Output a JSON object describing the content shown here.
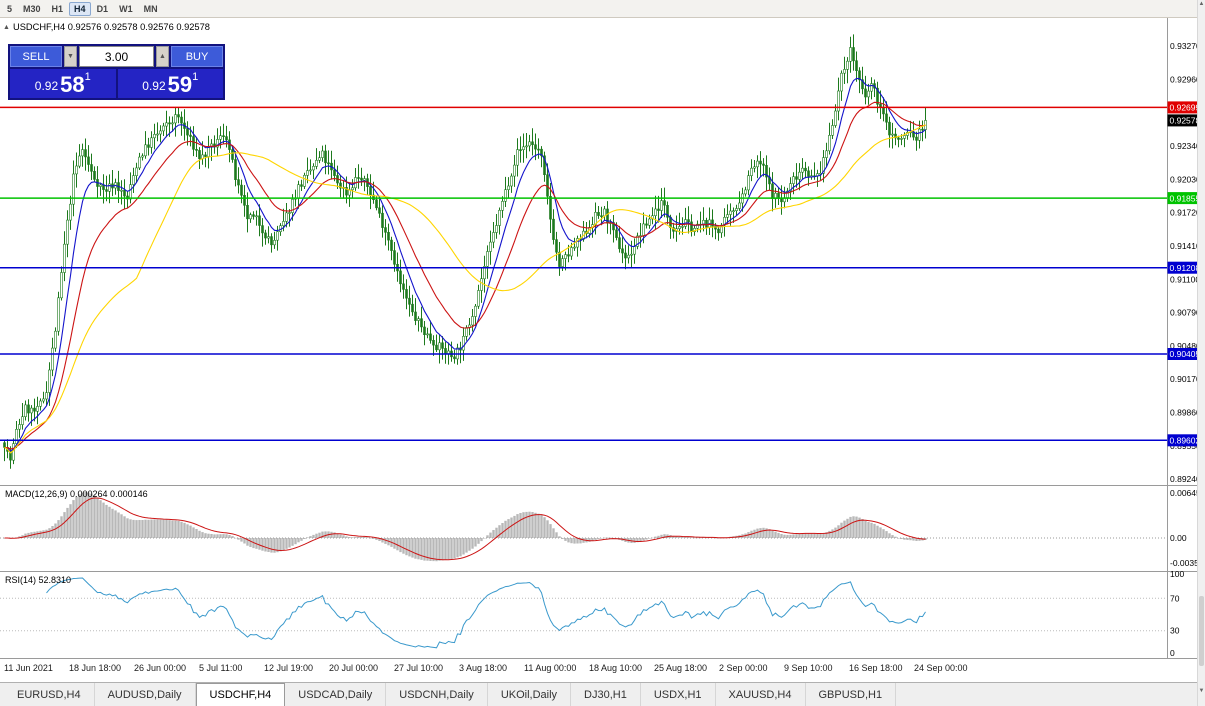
{
  "toolbar": {
    "periods": [
      "5",
      "M30",
      "H1",
      "H4",
      "D1",
      "W1",
      "MN"
    ],
    "active_period": "H4"
  },
  "symbol_info": {
    "marker": "▲",
    "line": "USDCHF,H4 0.92576 0.92578 0.92576 0.92578"
  },
  "trade_widget": {
    "sell_label": "SELL",
    "buy_label": "BUY",
    "volume": "3.00",
    "spin_down": "▼",
    "spin_up": "▲",
    "bid": {
      "small": "0.92",
      "big": "58",
      "sup": "1"
    },
    "ask": {
      "small": "0.92",
      "big": "59",
      "sup": "1"
    }
  },
  "chart_data": {
    "type": "candlestick",
    "symbol": "USDCHF",
    "timeframe": "H4",
    "ohlc": {
      "open": "0.92576",
      "high": "0.92578",
      "low": "0.92576",
      "close": "0.92578"
    },
    "current_price": 0.92578,
    "current_label": "0.92578",
    "y_axis": {
      "top_price": 0.93531,
      "bottom_price": 0.89186
    },
    "price_ticks": [
      "0.93270",
      "0.92960",
      "0.92340",
      "0.92030",
      "0.91720",
      "0.91410",
      "0.91100",
      "0.90790",
      "0.90480",
      "0.90170",
      "0.89860",
      "0.89550",
      "0.89240"
    ],
    "levels": [
      {
        "price": 0.92699,
        "label": "0.92699",
        "color": "#E00000",
        "kind": "resistance"
      },
      {
        "price": 0.91855,
        "label": "0.91855",
        "color": "#00C300",
        "kind": "support"
      },
      {
        "price": 0.91208,
        "label": "0.91208",
        "color": "#0000D0",
        "kind": "support"
      },
      {
        "price": 0.90405,
        "label": "0.90405",
        "color": "#0000D0",
        "kind": "support"
      },
      {
        "price": 0.89602,
        "label": "0.89602",
        "color": "#0000D0",
        "kind": "support"
      }
    ],
    "bars": {
      "count": 308,
      "spacing": 3,
      "seed": 7,
      "noise": 0.0009,
      "wick": 0.0011
    },
    "price_path": [
      [
        0.0,
        0.8958
      ],
      [
        0.006,
        0.894
      ],
      [
        0.013,
        0.8968
      ],
      [
        0.022,
        0.899
      ],
      [
        0.035,
        0.8986
      ],
      [
        0.045,
        0.9005
      ],
      [
        0.055,
        0.906
      ],
      [
        0.065,
        0.914
      ],
      [
        0.075,
        0.9205
      ],
      [
        0.084,
        0.9232
      ],
      [
        0.095,
        0.9208
      ],
      [
        0.108,
        0.9192
      ],
      [
        0.12,
        0.92
      ],
      [
        0.133,
        0.9183
      ],
      [
        0.145,
        0.9222
      ],
      [
        0.16,
        0.924
      ],
      [
        0.175,
        0.9252
      ],
      [
        0.188,
        0.9262
      ],
      [
        0.2,
        0.9242
      ],
      [
        0.213,
        0.9222
      ],
      [
        0.225,
        0.9232
      ],
      [
        0.24,
        0.9247
      ],
      [
        0.252,
        0.92
      ],
      [
        0.263,
        0.9168
      ],
      [
        0.275,
        0.9165
      ],
      [
        0.29,
        0.9142
      ],
      [
        0.303,
        0.9162
      ],
      [
        0.318,
        0.9194
      ],
      [
        0.333,
        0.9212
      ],
      [
        0.345,
        0.9226
      ],
      [
        0.36,
        0.9202
      ],
      [
        0.372,
        0.919
      ],
      [
        0.383,
        0.9206
      ],
      [
        0.395,
        0.9196
      ],
      [
        0.407,
        0.917
      ],
      [
        0.418,
        0.9146
      ],
      [
        0.43,
        0.9105
      ],
      [
        0.443,
        0.9078
      ],
      [
        0.457,
        0.906
      ],
      [
        0.47,
        0.9048
      ],
      [
        0.487,
        0.9038
      ],
      [
        0.497,
        0.905
      ],
      [
        0.508,
        0.9078
      ],
      [
        0.52,
        0.9118
      ],
      [
        0.532,
        0.9155
      ],
      [
        0.545,
        0.9195
      ],
      [
        0.557,
        0.9228
      ],
      [
        0.57,
        0.9238
      ],
      [
        0.582,
        0.9228
      ],
      [
        0.594,
        0.916
      ],
      [
        0.602,
        0.9122
      ],
      [
        0.614,
        0.9135
      ],
      [
        0.628,
        0.915
      ],
      [
        0.641,
        0.9168
      ],
      [
        0.652,
        0.9172
      ],
      [
        0.663,
        0.9148
      ],
      [
        0.676,
        0.9128
      ],
      [
        0.69,
        0.9152
      ],
      [
        0.703,
        0.917
      ],
      [
        0.714,
        0.9182
      ],
      [
        0.725,
        0.9158
      ],
      [
        0.738,
        0.9162
      ],
      [
        0.75,
        0.9157
      ],
      [
        0.762,
        0.9163
      ],
      [
        0.775,
        0.9156
      ],
      [
        0.788,
        0.917
      ],
      [
        0.8,
        0.9186
      ],
      [
        0.812,
        0.9214
      ],
      [
        0.822,
        0.9218
      ],
      [
        0.833,
        0.919
      ],
      [
        0.845,
        0.9182
      ],
      [
        0.857,
        0.9204
      ],
      [
        0.868,
        0.9216
      ],
      [
        0.878,
        0.9202
      ],
      [
        0.888,
        0.9214
      ],
      [
        0.898,
        0.9252
      ],
      [
        0.908,
        0.9295
      ],
      [
        0.918,
        0.9325
      ],
      [
        0.926,
        0.9302
      ],
      [
        0.934,
        0.9276
      ],
      [
        0.941,
        0.9292
      ],
      [
        0.95,
        0.9272
      ],
      [
        0.96,
        0.9248
      ],
      [
        0.972,
        0.9238
      ],
      [
        0.982,
        0.9248
      ],
      [
        0.99,
        0.924
      ],
      [
        1.0,
        0.9258
      ]
    ],
    "moving_averages": [
      {
        "period": 8,
        "type": "ema",
        "color": "#1414CC"
      },
      {
        "period": 20,
        "type": "ema",
        "color": "#CC1414"
      },
      {
        "period": 45,
        "type": "sma",
        "color": "#FFD500"
      }
    ],
    "macd": {
      "label": "MACD(12,26,9) 0.000264 0.000146",
      "fast": 12,
      "slow": 26,
      "signal": 9,
      "axis_labels": [
        "0.006450",
        "0.00",
        "-0.00350"
      ],
      "hist_color": "#B8B8B8",
      "signal_color": "#CC1414"
    },
    "rsi": {
      "label": "RSI(14) 52.8310",
      "period": 14,
      "axis_labels": [
        {
          "text": "100",
          "value": 100
        },
        {
          "text": "70",
          "value": 70
        },
        {
          "text": "30",
          "value": 30
        },
        {
          "text": "0",
          "value": 0
        }
      ],
      "guide_levels": [
        70,
        30
      ],
      "color": "#3A99CC"
    },
    "time_labels": [
      "11 Jun 2021",
      "18 Jun 18:00",
      "26 Jun 00:00",
      "5 Jul 11:00",
      "12 Jul 19:00",
      "20 Jul 00:00",
      "27 Jul 10:00",
      "3 Aug 18:00",
      "11 Aug 00:00",
      "18 Aug 10:00",
      "25 Aug 18:00",
      "2 Sep 00:00",
      "9 Sep 10:00",
      "16 Sep 18:00",
      "24 Sep 00:00"
    ],
    "colors": {
      "bg": "#FFFFFF",
      "candle": "#1D7A1D",
      "up_fill": "#FFFFFF",
      "axis_text": "#000000",
      "separator": "#9A9A9A"
    }
  },
  "tabs": {
    "items": [
      "EURUSD,H4",
      "AUDUSD,Daily",
      "USDCHF,H4",
      "USDCAD,Daily",
      "USDCNH,Daily",
      "UKOil,Daily",
      "DJ30,H1",
      "USDX,H1",
      "XAUUSD,H4",
      "GBPUSD,H1"
    ],
    "active": "USDCHF,H4"
  },
  "scrollbar": {
    "up": "▲",
    "down": "▼"
  }
}
